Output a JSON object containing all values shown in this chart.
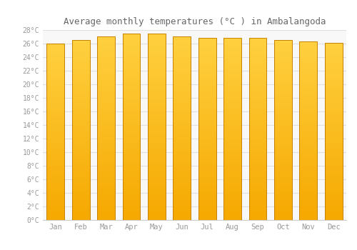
{
  "months": [
    "Jan",
    "Feb",
    "Mar",
    "Apr",
    "May",
    "Jun",
    "Jul",
    "Aug",
    "Sep",
    "Oct",
    "Nov",
    "Dec"
  ],
  "values": [
    26.0,
    26.5,
    27.1,
    27.5,
    27.5,
    27.1,
    26.8,
    26.8,
    26.8,
    26.5,
    26.3,
    26.1
  ],
  "title": "Average monthly temperatures (°C ) in Ambalangoda",
  "ylim": [
    0,
    28
  ],
  "ytick_step": 2,
  "bar_color_bottom": "#F5A800",
  "bar_color_top": "#FFD040",
  "bar_edge_color": "#C88000",
  "bg_color": "#FFFFFF",
  "plot_bg_color": "#F8F8F8",
  "grid_color": "#E0E0E0",
  "text_color": "#999999",
  "title_color": "#666666",
  "title_fontsize": 9,
  "tick_fontsize": 7,
  "bar_width": 0.7
}
